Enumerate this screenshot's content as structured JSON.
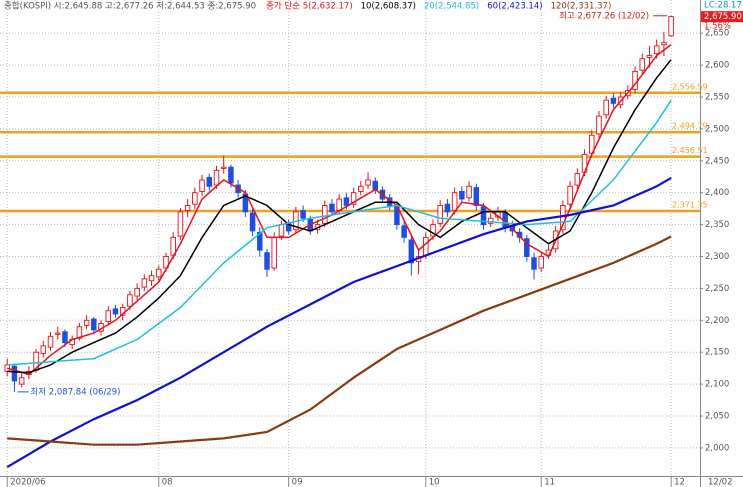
{
  "chart_data": {
    "type": "candlestick",
    "title": "종합(KOSPI) 시:2,645.88 고:2,677.26 저:2,644.53 종:2,675.90",
    "up_color": "#e8101a",
    "down_color": "#1f4fe0",
    "ohlc": [
      [
        2120,
        2140,
        2112,
        2130
      ],
      [
        2128,
        2132,
        2087.84,
        2105
      ],
      [
        2100,
        2118,
        2095,
        2110
      ],
      [
        2115,
        2128,
        2108,
        2120
      ],
      [
        2122,
        2155,
        2118,
        2150
      ],
      [
        2148,
        2168,
        2142,
        2160
      ],
      [
        2158,
        2182,
        2152,
        2175
      ],
      [
        2178,
        2190,
        2170,
        2180
      ],
      [
        2182,
        2186,
        2158,
        2165
      ],
      [
        2162,
        2176,
        2155,
        2170
      ],
      [
        2172,
        2196,
        2168,
        2190
      ],
      [
        2192,
        2208,
        2186,
        2200
      ],
      [
        2202,
        2205,
        2178,
        2185
      ],
      [
        2183,
        2200,
        2176,
        2195
      ],
      [
        2198,
        2222,
        2192,
        2215
      ],
      [
        2218,
        2224,
        2204,
        2210
      ],
      [
        2208,
        2226,
        2200,
        2220
      ],
      [
        2222,
        2246,
        2216,
        2240
      ],
      [
        2238,
        2258,
        2232,
        2250
      ],
      [
        2252,
        2272,
        2246,
        2265
      ],
      [
        2262,
        2278,
        2254,
        2270
      ],
      [
        2268,
        2286,
        2260,
        2280
      ],
      [
        2282,
        2306,
        2276,
        2300
      ],
      [
        2302,
        2338,
        2296,
        2330
      ],
      [
        2332,
        2376,
        2326,
        2370
      ],
      [
        2372,
        2390,
        2362,
        2380
      ],
      [
        2382,
        2408,
        2374,
        2400
      ],
      [
        2402,
        2428,
        2395,
        2420
      ],
      [
        2424,
        2430,
        2402,
        2410
      ],
      [
        2412,
        2442,
        2406,
        2435
      ],
      [
        2438,
        2458,
        2430,
        2440
      ],
      [
        2440,
        2444,
        2408,
        2415
      ],
      [
        2412,
        2420,
        2392,
        2400
      ],
      [
        2398,
        2404,
        2362,
        2370
      ],
      [
        2368,
        2374,
        2332,
        2340
      ],
      [
        2338,
        2346,
        2300,
        2310
      ],
      [
        2306,
        2312,
        2268,
        2280
      ],
      [
        2282,
        2338,
        2278,
        2330
      ],
      [
        2332,
        2356,
        2326,
        2350
      ],
      [
        2352,
        2358,
        2334,
        2340
      ],
      [
        2342,
        2378,
        2336,
        2370
      ],
      [
        2372,
        2380,
        2354,
        2360
      ],
      [
        2358,
        2364,
        2334,
        2340
      ],
      [
        2342,
        2358,
        2336,
        2350
      ],
      [
        2352,
        2388,
        2346,
        2380
      ],
      [
        2382,
        2390,
        2364,
        2370
      ],
      [
        2372,
        2398,
        2366,
        2390
      ],
      [
        2392,
        2400,
        2374,
        2380
      ],
      [
        2382,
        2408,
        2376,
        2400
      ],
      [
        2402,
        2418,
        2396,
        2410
      ],
      [
        2412,
        2432,
        2406,
        2420
      ],
      [
        2418,
        2424,
        2398,
        2405
      ],
      [
        2404,
        2410,
        2384,
        2390
      ],
      [
        2392,
        2398,
        2372,
        2380
      ],
      [
        2378,
        2384,
        2342,
        2350
      ],
      [
        2348,
        2356,
        2322,
        2330
      ],
      [
        2326,
        2334,
        2270,
        2290
      ],
      [
        2292,
        2312,
        2272,
        2300
      ],
      [
        2302,
        2338,
        2296,
        2330
      ],
      [
        2332,
        2358,
        2326,
        2350
      ],
      [
        2352,
        2388,
        2346,
        2380
      ],
      [
        2382,
        2390,
        2362,
        2370
      ],
      [
        2372,
        2408,
        2366,
        2400
      ],
      [
        2402,
        2410,
        2384,
        2390
      ],
      [
        2392,
        2418,
        2386,
        2410
      ],
      [
        2408,
        2414,
        2372,
        2380
      ],
      [
        2378,
        2384,
        2342,
        2350
      ],
      [
        2352,
        2368,
        2346,
        2360
      ],
      [
        2362,
        2378,
        2356,
        2370
      ],
      [
        2368,
        2374,
        2338,
        2345
      ],
      [
        2347,
        2356,
        2332,
        2340
      ],
      [
        2338,
        2344,
        2322,
        2330
      ],
      [
        2328,
        2334,
        2292,
        2300
      ],
      [
        2298,
        2306,
        2264,
        2280
      ],
      [
        2282,
        2308,
        2276,
        2300
      ],
      [
        2302,
        2318,
        2296,
        2310
      ],
      [
        2312,
        2348,
        2306,
        2340
      ],
      [
        2342,
        2388,
        2336,
        2380
      ],
      [
        2382,
        2418,
        2376,
        2410
      ],
      [
        2412,
        2438,
        2406,
        2430
      ],
      [
        2432,
        2468,
        2426,
        2460
      ],
      [
        2462,
        2498,
        2456,
        2490
      ],
      [
        2492,
        2528,
        2486,
        2520
      ],
      [
        2522,
        2552,
        2516,
        2545
      ],
      [
        2548,
        2556,
        2532,
        2540
      ],
      [
        2538,
        2558,
        2532,
        2550
      ],
      [
        2552,
        2568,
        2546,
        2560
      ],
      [
        2562,
        2598,
        2556,
        2590
      ],
      [
        2592,
        2618,
        2586,
        2610
      ],
      [
        2612,
        2630,
        2596,
        2615
      ],
      [
        2618,
        2640,
        2610,
        2630
      ],
      [
        2632,
        2652,
        2614,
        2635
      ],
      [
        2645.88,
        2677.26,
        2644.53,
        2675.9
      ]
    ],
    "series": [
      {
        "name": "종가 단순 5(2,632.17)",
        "color": "#e8101a",
        "x": [
          0,
          3,
          6,
          9,
          12,
          15,
          18,
          21,
          24,
          27,
          30,
          33,
          36,
          39,
          42,
          45,
          48,
          51,
          54,
          57,
          60,
          63,
          66,
          69,
          72,
          75,
          78,
          81,
          84,
          87,
          90,
          92
        ],
        "values": [
          2125,
          2115,
          2145,
          2170,
          2180,
          2200,
          2230,
          2260,
          2320,
          2390,
          2420,
          2400,
          2330,
          2330,
          2350,
          2365,
          2385,
          2405,
          2380,
          2310,
          2340,
          2385,
          2380,
          2355,
          2320,
          2300,
          2375,
          2460,
          2530,
          2570,
          2615,
          2632.17
        ]
      },
      {
        "name": "10(2,608.37)",
        "color": "#000000",
        "x": [
          0,
          3,
          6,
          9,
          12,
          15,
          18,
          21,
          24,
          27,
          30,
          33,
          36,
          39,
          42,
          45,
          48,
          51,
          54,
          57,
          60,
          63,
          66,
          69,
          72,
          75,
          78,
          81,
          84,
          87,
          90,
          92
        ],
        "values": [
          2120,
          2118,
          2130,
          2150,
          2165,
          2180,
          2205,
          2235,
          2270,
          2330,
          2380,
          2395,
          2380,
          2350,
          2340,
          2355,
          2370,
          2385,
          2385,
          2350,
          2330,
          2355,
          2370,
          2370,
          2345,
          2320,
          2340,
          2400,
          2470,
          2530,
          2580,
          2608.37
        ]
      },
      {
        "name": "20(2,544.85)",
        "color": "#1ec0e0",
        "x": [
          0,
          6,
          12,
          18,
          24,
          30,
          36,
          42,
          48,
          54,
          60,
          66,
          72,
          78,
          84,
          90,
          92
        ],
        "values": [
          2130,
          2135,
          2140,
          2170,
          2220,
          2290,
          2345,
          2360,
          2370,
          2380,
          2360,
          2355,
          2350,
          2355,
          2420,
          2510,
          2544.85
        ]
      },
      {
        "name": "60(2,423.14)",
        "color": "#1010d0",
        "x": [
          0,
          6,
          12,
          18,
          24,
          30,
          36,
          42,
          48,
          54,
          60,
          66,
          72,
          78,
          84,
          90,
          92
        ],
        "values": [
          1970,
          2010,
          2045,
          2075,
          2110,
          2150,
          2190,
          2225,
          2260,
          2285,
          2310,
          2335,
          2355,
          2365,
          2380,
          2410,
          2423.14
        ]
      },
      {
        "name": "120(2,331.37)",
        "color": "#8b3a10",
        "x": [
          0,
          6,
          12,
          18,
          24,
          30,
          36,
          42,
          48,
          54,
          60,
          66,
          72,
          78,
          84,
          90,
          92
        ],
        "values": [
          2015,
          2010,
          2005,
          2005,
          2010,
          2015,
          2025,
          2060,
          2110,
          2155,
          2185,
          2215,
          2240,
          2265,
          2290,
          2320,
          2331.37
        ]
      }
    ],
    "levels": [
      {
        "value": 2556.59,
        "label": "2,556.59"
      },
      {
        "value": 2494.79,
        "label": "2,494.79"
      },
      {
        "value": 2456.51,
        "label": "2,456.51"
      },
      {
        "value": 2371.35,
        "label": "2,371.35"
      }
    ],
    "level_color": "#f0a020",
    "annotations": [
      "최고 2,677.26 (12/02)",
      "최저 2,087.84 (06/29)"
    ],
    "indicator": "LC:28.17",
    "change": "1.56%",
    "last_price": {
      "value": 2675.9,
      "label": "2,675.90"
    },
    "cursor_date": "12/02",
    "xlim": [
      -1,
      96
    ],
    "xticks": [
      {
        "value": 0,
        "label": "2020/06"
      },
      {
        "value": 21,
        "label": "08"
      },
      {
        "value": 39,
        "label": "09"
      },
      {
        "value": 58,
        "label": "10"
      },
      {
        "value": 74,
        "label": "11"
      },
      {
        "value": 92,
        "label": "12"
      }
    ],
    "ylim": [
      1956,
      2702
    ],
    "yticks": [
      {
        "value": 2000,
        "label": "2,000"
      },
      {
        "value": 2050,
        "label": "2,050"
      },
      {
        "value": 2100,
        "label": "2,100"
      },
      {
        "value": 2150,
        "label": "2,150"
      },
      {
        "value": 2200,
        "label": "2,200"
      },
      {
        "value": 2250,
        "label": "2,250"
      },
      {
        "value": 2300,
        "label": "2,300"
      },
      {
        "value": 2350,
        "label": "2,350"
      },
      {
        "value": 2400,
        "label": "2,400"
      },
      {
        "value": 2450,
        "label": "2,450"
      },
      {
        "value": 2500,
        "label": "2,500"
      },
      {
        "value": 2550,
        "label": "2,550"
      },
      {
        "value": 2600,
        "label": "2,600"
      },
      {
        "value": 2650,
        "label": "2,650"
      }
    ],
    "grid": true
  }
}
